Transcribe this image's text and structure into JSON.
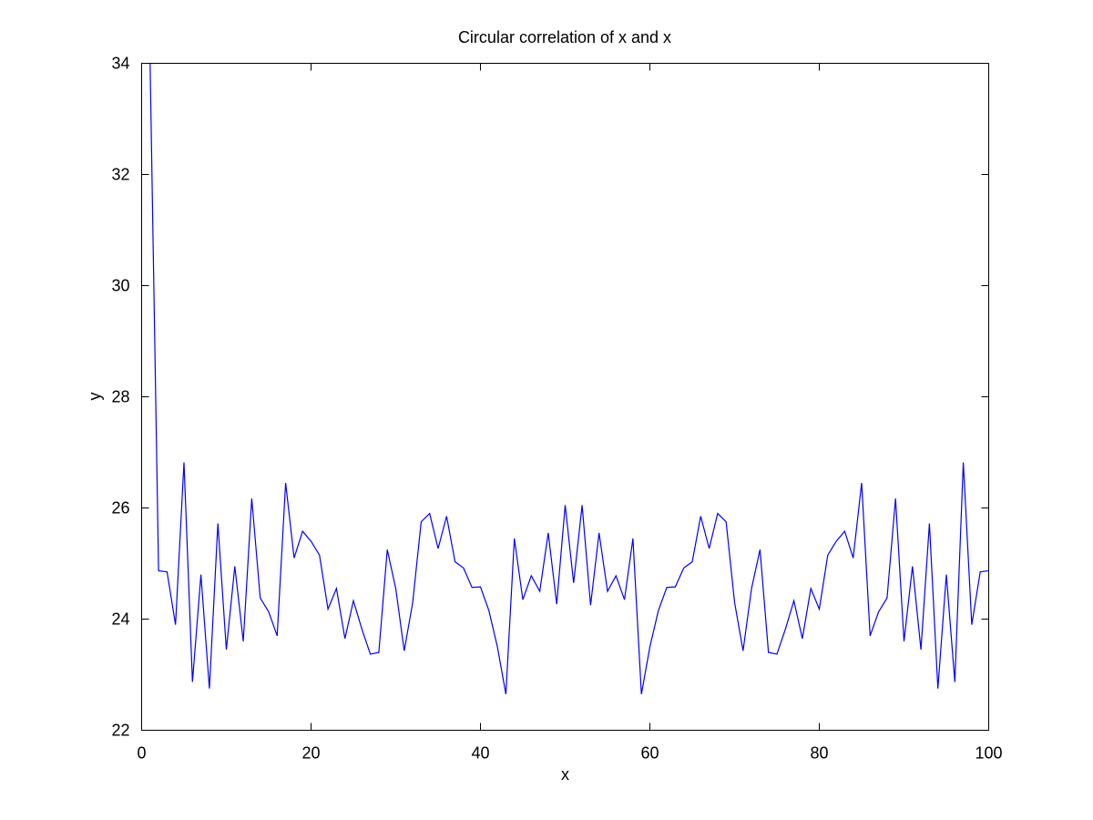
{
  "colors": {
    "background": "#ffffff",
    "axes": "#000000",
    "line": "#0000ff"
  },
  "chart_data": {
    "type": "line",
    "title": "Circular correlation of x and x",
    "xlabel": "x",
    "ylabel": "y",
    "xlim": [
      0,
      100
    ],
    "ylim": [
      22,
      34
    ],
    "xticks": [
      0,
      20,
      40,
      60,
      80,
      100
    ],
    "yticks": [
      22,
      24,
      26,
      28,
      30,
      32,
      34
    ],
    "grid": false,
    "legend": "none",
    "series": [
      {
        "color": "#0000ff",
        "x": [
          1,
          2,
          3,
          4,
          5,
          6,
          7,
          8,
          9,
          10,
          11,
          12,
          13,
          14,
          15,
          16,
          17,
          18,
          19,
          20,
          21,
          22,
          23,
          24,
          25,
          26,
          27,
          28,
          29,
          30,
          31,
          32,
          33,
          34,
          35,
          36,
          37,
          38,
          39,
          40,
          41,
          42,
          43,
          44,
          45,
          46,
          47,
          48,
          49,
          50,
          51,
          52,
          53,
          54,
          55,
          56,
          57,
          58,
          59,
          60,
          61,
          62,
          63,
          64,
          65,
          66,
          67,
          68,
          69,
          70,
          71,
          72,
          73,
          74,
          75,
          76,
          77,
          78,
          79,
          80,
          81,
          82,
          83,
          84,
          85,
          86,
          87,
          88,
          89,
          90,
          91,
          92,
          93,
          94,
          95,
          96,
          97,
          98,
          99,
          100
        ],
        "y": [
          34.0,
          24.87,
          24.85,
          23.9,
          26.82,
          22.87,
          24.8,
          22.75,
          25.72,
          23.45,
          24.95,
          23.6,
          26.17,
          24.38,
          24.13,
          23.7,
          26.45,
          25.1,
          25.58,
          25.4,
          25.15,
          24.18,
          24.55,
          23.65,
          24.33,
          23.82,
          23.37,
          23.4,
          25.25,
          24.55,
          23.43,
          24.3,
          25.75,
          25.9,
          25.27,
          25.85,
          25.03,
          24.92,
          24.57,
          24.58,
          24.15,
          23.5,
          22.65,
          25.45,
          24.35,
          24.78,
          24.5,
          25.55,
          24.27,
          26.05,
          24.65,
          26.05,
          24.25,
          25.55,
          24.5,
          24.78,
          24.35,
          25.45,
          22.65,
          23.5,
          24.15,
          24.57,
          24.58,
          24.92,
          25.03,
          25.85,
          25.27,
          25.9,
          25.75,
          24.3,
          23.43,
          24.55,
          25.25,
          23.4,
          23.37,
          23.82,
          24.33,
          23.65,
          24.55,
          24.18,
          25.15,
          25.4,
          25.58,
          25.1,
          26.45,
          23.7,
          24.13,
          24.38,
          26.17,
          23.6,
          24.95,
          23.45,
          25.72,
          22.75,
          24.8,
          22.87,
          26.82,
          23.9,
          24.85,
          24.87
        ]
      }
    ]
  }
}
